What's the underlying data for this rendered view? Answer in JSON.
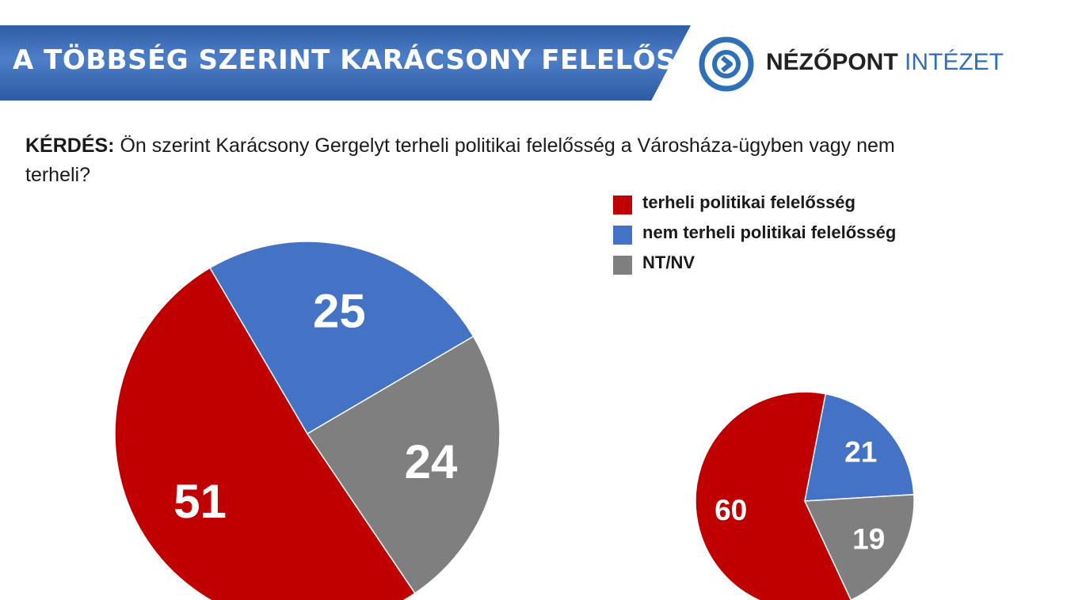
{
  "header": {
    "title": "A TÖBBSÉG SZERINT KARÁCSONY FELELŐS",
    "logo_word1": "NÉZŐPONT",
    "logo_word2": "INTÉZET"
  },
  "question": {
    "label": "KÉRDÉS:",
    "text": "Ön szerint Karácsony Gergelyt terheli politikai felelősség a Városháza-ügyben vagy nem terheli?"
  },
  "colors": {
    "red": "#c00000",
    "blue": "#4472c4",
    "gray": "#7f7f7f",
    "banner": "#3a6ab5",
    "logo": "#2e6fb7"
  },
  "chart_data": {
    "type": "pie",
    "legend": {
      "placement": "top-right",
      "entries": [
        {
          "name": "terheli politikai felelősség",
          "color": "#c00000"
        },
        {
          "name": "nem terheli politikai felelősség",
          "color": "#4472c4"
        },
        {
          "name": "NT/NV",
          "color": "#7f7f7f"
        }
      ]
    },
    "pies": [
      {
        "slices": [
          {
            "name": "terheli politikai felelősség",
            "value": 51,
            "label": "51",
            "color": "#c00000"
          },
          {
            "name": "nem terheli politikai felelősség",
            "value": 25,
            "label": "25",
            "color": "#4472c4"
          },
          {
            "name": "NT/NV",
            "value": 24,
            "label": "24",
            "color": "#7f7f7f"
          }
        ]
      },
      {
        "slices": [
          {
            "name": "terheli politikai felelősség",
            "value": 60,
            "label": "60",
            "color": "#c00000"
          },
          {
            "name": "nem terheli politikai felelősség",
            "value": 21,
            "label": "21",
            "color": "#4472c4"
          },
          {
            "name": "NT/NV",
            "value": 19,
            "label": "19",
            "color": "#7f7f7f"
          }
        ]
      }
    ]
  }
}
